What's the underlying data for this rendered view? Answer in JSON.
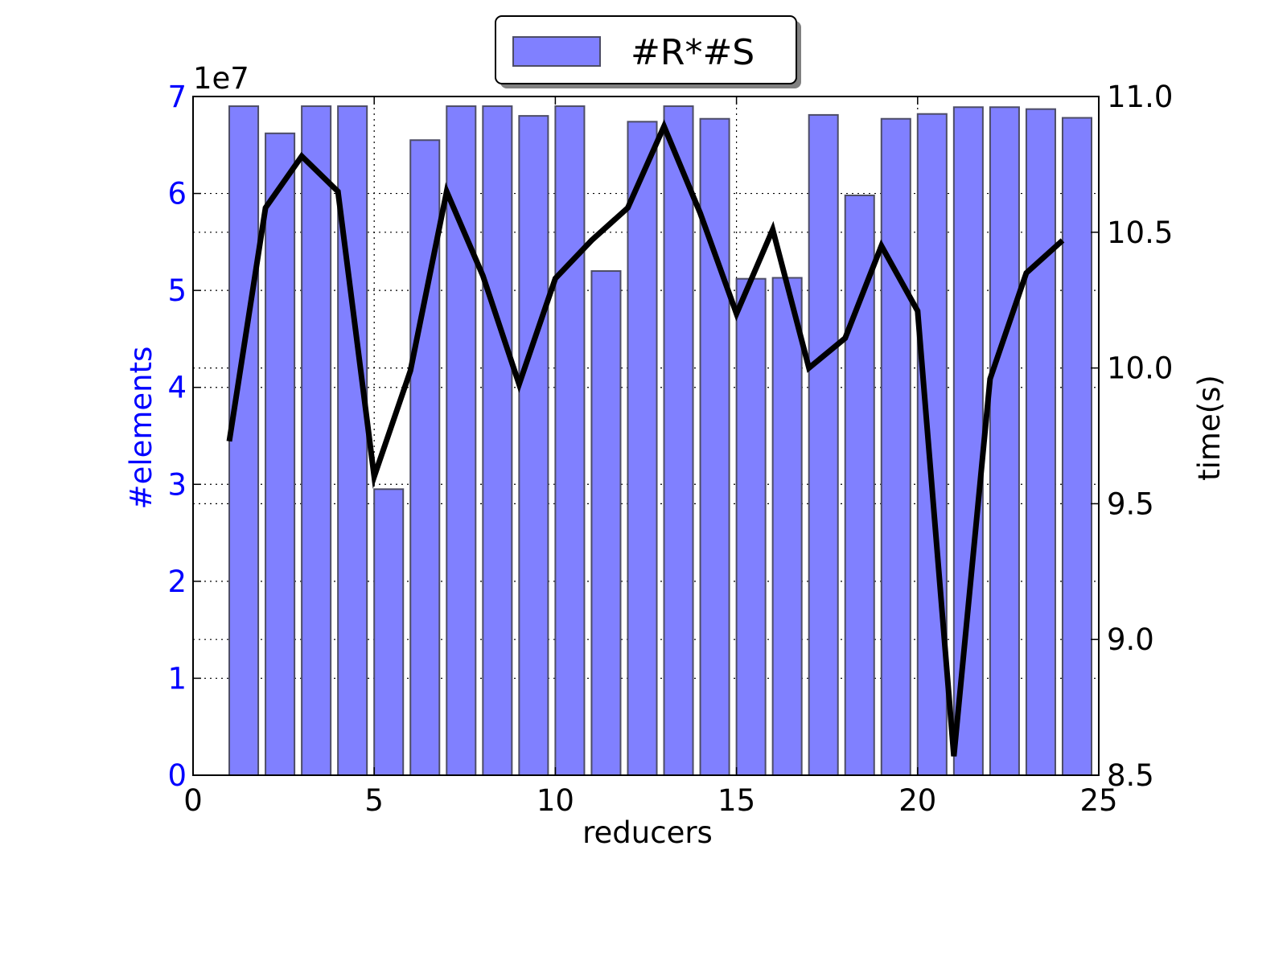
{
  "chart_data": {
    "type": "bar",
    "legend": {
      "label": "#R*#S",
      "position": "top-center"
    },
    "x": [
      1,
      2,
      3,
      4,
      5,
      6,
      7,
      8,
      9,
      10,
      11,
      12,
      13,
      14,
      15,
      16,
      17,
      18,
      19,
      20,
      21,
      22,
      23,
      24
    ],
    "xlabel": "reducers",
    "xlim": [
      0,
      25
    ],
    "xticks": [
      "0",
      "5",
      "10",
      "15",
      "20",
      "25"
    ],
    "ylabel_left": "#elements",
    "ylim_left": [
      0,
      70000000
    ],
    "yticks_left": [
      "0",
      "1",
      "2",
      "3",
      "4",
      "5",
      "6",
      "7"
    ],
    "left_offset_label": "1e7",
    "ylabel_right": "time(s)",
    "ylim_right": [
      8.5,
      11.0
    ],
    "yticks_right": [
      "8.5",
      "9.0",
      "9.5",
      "10.0",
      "10.5",
      "11.0"
    ],
    "grid": true,
    "bar_series": {
      "name": "#R*#S",
      "axis": "left",
      "values": [
        69000000,
        66200000,
        69000000,
        69000000,
        29500000,
        65500000,
        69000000,
        69000000,
        68000000,
        69000000,
        52000000,
        67400000,
        69000000,
        67700000,
        51200000,
        51300000,
        68100000,
        59800000,
        67700000,
        68200000,
        68900000,
        68900000,
        68700000,
        67800000
      ]
    },
    "line_series": {
      "axis": "right",
      "values": [
        9.73,
        10.59,
        10.78,
        10.65,
        9.6,
        9.99,
        10.65,
        10.34,
        9.94,
        10.33,
        10.47,
        10.59,
        10.89,
        10.57,
        10.2,
        10.51,
        10.0,
        10.11,
        10.45,
        10.21,
        8.57,
        9.96,
        10.35,
        10.47
      ]
    },
    "colors": {
      "bar_fill": "#8080ff",
      "bar_edge": "#4d4d66",
      "line": "#000000",
      "left_axis_text": "#0000ff",
      "right_axis_text": "#000000"
    }
  }
}
